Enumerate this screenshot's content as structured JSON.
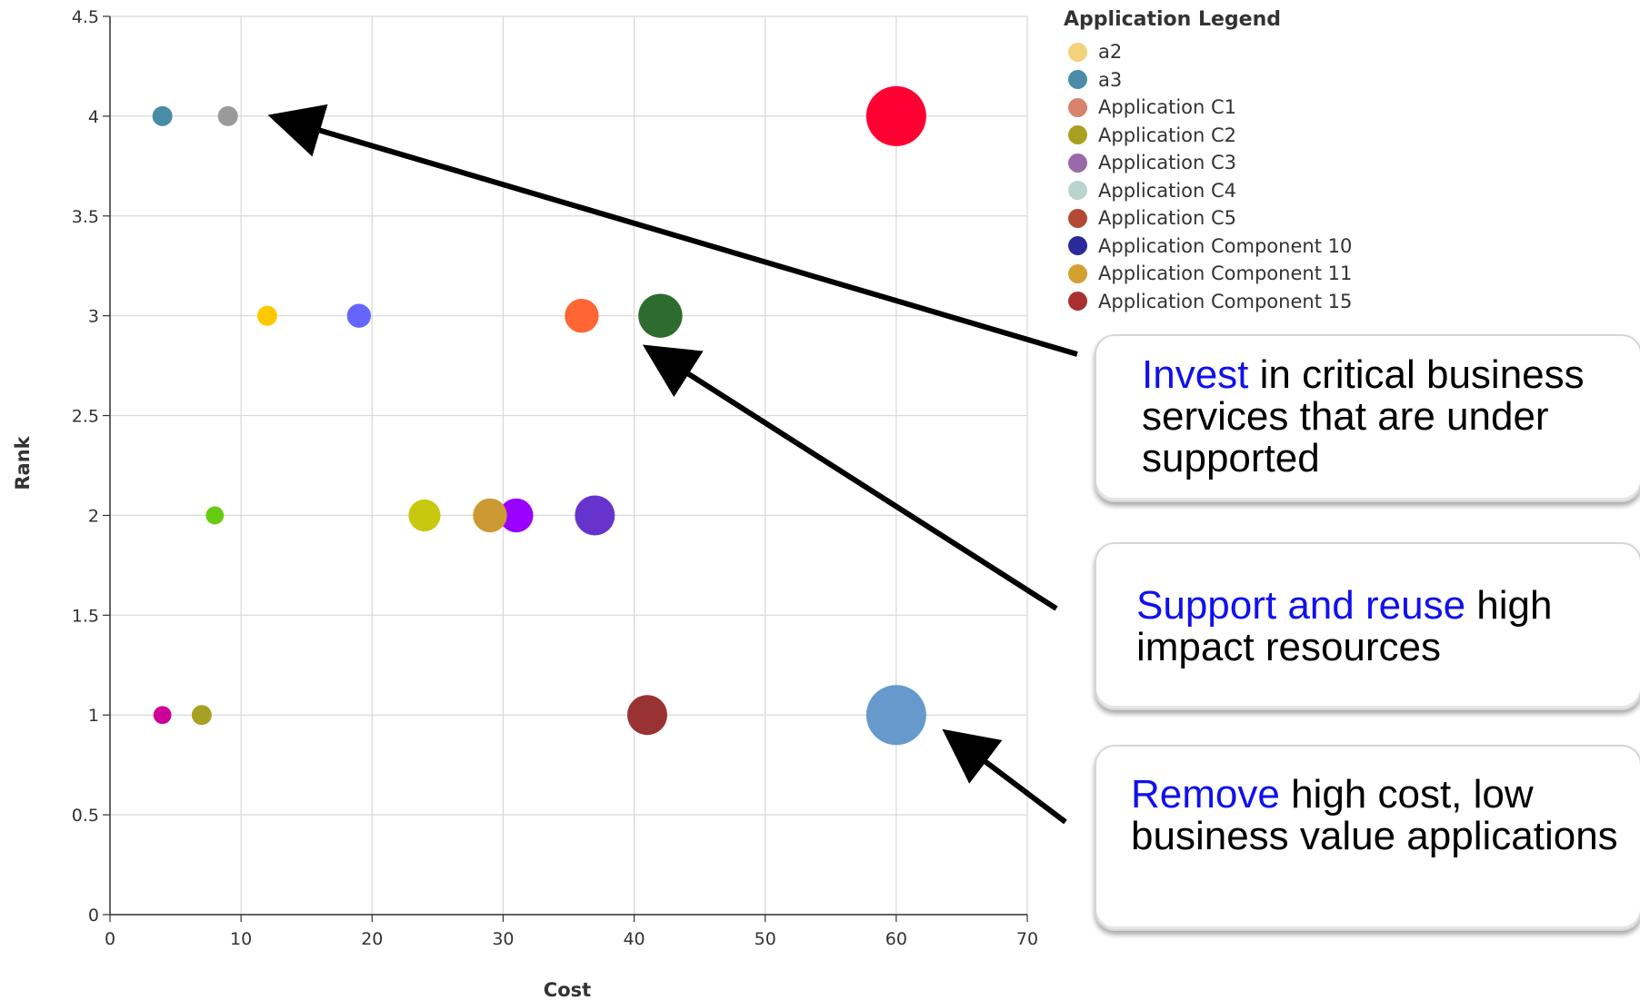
{
  "chart_data": {
    "type": "scatter",
    "xlabel": "Cost",
    "ylabel": "Rank",
    "xlim": [
      0,
      70
    ],
    "ylim": [
      0,
      4.5
    ],
    "xticks": [
      0,
      10,
      20,
      30,
      40,
      50,
      60,
      70
    ],
    "yticks": [
      0,
      0.5,
      1,
      1.5,
      2,
      2.5,
      3,
      3.5,
      4,
      4.5
    ],
    "grid": true,
    "points": [
      {
        "x": 4,
        "y": 4,
        "size": 1,
        "color": "#4a8ca8"
      },
      {
        "x": 9,
        "y": 4,
        "size": 1,
        "color": "#9a9a9a"
      },
      {
        "x": 60,
        "y": 4,
        "size": 3,
        "color": "#ff0033"
      },
      {
        "x": 12,
        "y": 3,
        "size": 1,
        "color": "#ffc800"
      },
      {
        "x": 19,
        "y": 3,
        "size": 1.2,
        "color": "#6666ff"
      },
      {
        "x": 36,
        "y": 3,
        "size": 1.7,
        "color": "#ff6633"
      },
      {
        "x": 42,
        "y": 3,
        "size": 2.2,
        "color": "#2e6b2e"
      },
      {
        "x": 8,
        "y": 2,
        "size": 0.9,
        "color": "#66cc11"
      },
      {
        "x": 24,
        "y": 2,
        "size": 1.6,
        "color": "#c8c810"
      },
      {
        "x": 31,
        "y": 2,
        "size": 1.7,
        "color": "#9900ff"
      },
      {
        "x": 29,
        "y": 2,
        "size": 1.7,
        "color": "#cc9933"
      },
      {
        "x": 37,
        "y": 2,
        "size": 2.0,
        "color": "#6633cc"
      },
      {
        "x": 4,
        "y": 1,
        "size": 0.9,
        "color": "#cc0099"
      },
      {
        "x": 7,
        "y": 1,
        "size": 1,
        "color": "#a8a020"
      },
      {
        "x": 41,
        "y": 1,
        "size": 2.0,
        "color": "#993333"
      },
      {
        "x": 60,
        "y": 1,
        "size": 3,
        "color": "#6699cc"
      }
    ]
  },
  "legend": {
    "title": "Application Legend",
    "items": [
      {
        "label": "a2",
        "color": "#f2d27a"
      },
      {
        "label": "a3",
        "color": "#4a8ca8"
      },
      {
        "label": "Application C1",
        "color": "#d9826e"
      },
      {
        "label": "Application C2",
        "color": "#a8a020"
      },
      {
        "label": "Application C3",
        "color": "#9a6aa8"
      },
      {
        "label": "Application C4",
        "color": "#b8d4cc"
      },
      {
        "label": "Application C5",
        "color": "#b04a34"
      },
      {
        "label": "Application Component 10",
        "color": "#2a2a9a"
      },
      {
        "label": "Application Component 11",
        "color": "#d4a030"
      },
      {
        "label": "Application Component 15",
        "color": "#a83030"
      }
    ]
  },
  "callouts": [
    {
      "highlight": "Invest",
      "rest": " in critical business services that are under supported"
    },
    {
      "highlight": "Support and reuse",
      "rest": " high impact resources"
    },
    {
      "highlight": "Remove",
      "rest": " high cost, low business value applications"
    }
  ]
}
